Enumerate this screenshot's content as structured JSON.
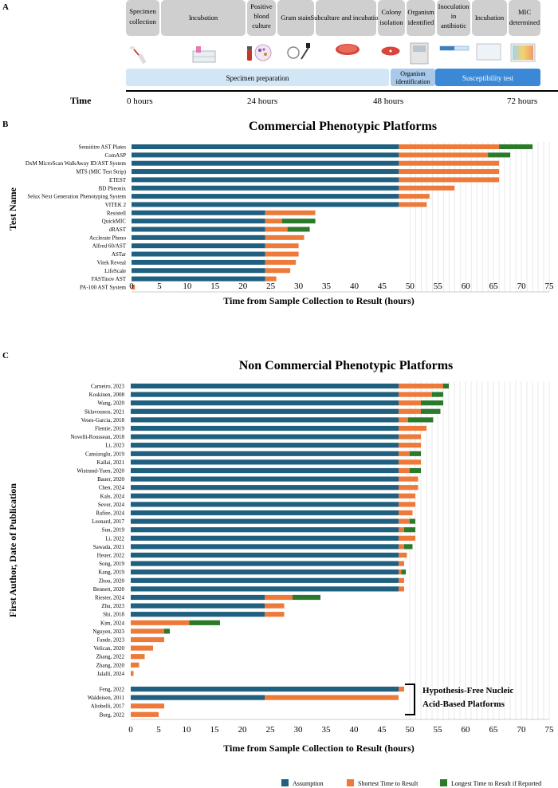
{
  "colors": {
    "assumption": "#1f5f7f",
    "shortest": "#ee7a3a",
    "longest": "#2a7a2a",
    "box": "#cfcfcf",
    "prep": "#d2e6f5",
    "ident": "#a8c9ea",
    "suscept": "#3a88d6"
  },
  "panelA": {
    "label": "A",
    "steps": [
      "Specimen collection",
      "Incubation",
      "Positive blood culture",
      "Gram stain",
      "Subculture and incubation",
      "Colony isolation",
      "Organism identified",
      "Inoculation in antibiotic",
      "Incubation",
      "MIC determined"
    ],
    "phases": [
      "Specimen preparation",
      "Organism identification",
      "Susceptibility test"
    ],
    "time_label": "Time",
    "times": [
      "0 hours",
      "24 hours",
      "48 hours",
      "72 hours"
    ],
    "icons": [
      "swab-icon",
      "incubator-icon",
      "blood-bottle-icon",
      "gram-stain-icon",
      "microscope-icon",
      "petri-dish-icon",
      "colony-plate-icon",
      "analyzer-icon",
      "strip-icon",
      "well-plate-icon",
      "mic-plate-icon"
    ]
  },
  "chart_data": [
    {
      "type": "bar",
      "stacked": true,
      "orientation": "horizontal",
      "panel": "B",
      "title": "Commercial Phenotypic Platforms",
      "xlabel": "Time from Sample Collection to Result (hours)",
      "ylabel": "Test Name",
      "xlim": [
        0,
        75
      ],
      "xticks": [
        0,
        5,
        10,
        15,
        20,
        25,
        30,
        35,
        40,
        45,
        50,
        55,
        60,
        65,
        70,
        75
      ],
      "categories": [
        "Sensititre AST Plates",
        "ComASP",
        "DxM MicroScan WalkAway ID/AST System",
        "MTS (MIC Test Strip)",
        "ETEST",
        "BD Pheonix",
        "Selux Next Generation Phenotyping System",
        "VITEK 2",
        "Resistell",
        "QuickMIC",
        "dRAST",
        "Acclerate Pheno",
        "Alfred 60/AST",
        "ASTar",
        "Vitek Reveal",
        "LifeScale",
        "FASTinov AST",
        "PA-100 AST System"
      ],
      "series": [
        {
          "name": "Assumption",
          "values": [
            48,
            48,
            48,
            48,
            48,
            48,
            48,
            48,
            24,
            24,
            24,
            24,
            24,
            24,
            24,
            24,
            24,
            0
          ]
        },
        {
          "name": "Shortest Time to Result",
          "values": [
            18,
            16,
            18,
            18,
            18,
            10,
            5.5,
            5,
            9,
            3,
            4,
            7,
            6,
            6,
            5.5,
            4.5,
            2,
            0.6
          ]
        },
        {
          "name": "Longest Time to Result if Reported",
          "values": [
            6,
            4,
            0,
            0,
            0,
            0,
            0,
            0,
            0,
            6,
            4,
            0,
            0,
            0,
            0,
            0,
            0,
            0
          ]
        }
      ]
    },
    {
      "type": "bar",
      "stacked": true,
      "orientation": "horizontal",
      "panel": "C",
      "title": "Non Commercial Phenotypic Platforms",
      "xlabel": "Time from Sample Collection to Result (hours)",
      "ylabel": "First Author, Date of Publication",
      "xlim": [
        0,
        75
      ],
      "xticks": [
        0,
        5,
        10,
        15,
        20,
        25,
        30,
        35,
        40,
        45,
        50,
        55,
        60,
        65,
        70,
        75
      ],
      "categories": [
        "Carneiro, 2023",
        "Koskinen, 2008",
        "Wang, 2020",
        "Sklavounos, 2021",
        "Veses-Garcia, 2018",
        "Flentie, 2019",
        "Novelli-Rousseau, 2018",
        "Li, 2023",
        "Cansizoglu, 2019",
        "Kallai, 2021",
        "Wistrand-Yuen, 2020",
        "Bauer, 2020",
        "Chen, 2024",
        "Kals, 2024",
        "Sever, 2024",
        "Rafiee, 2024",
        "Leonard, 2017",
        "Sun, 2019",
        "Li, 2022",
        "Sawada, 2021",
        "Heuer, 2022",
        "Song, 2019",
        "Kang, 2019",
        "Zhou, 2020",
        "Bennett, 2020",
        "Riester, 2024",
        "Zhu, 2023",
        "Shi, 2018",
        "Kim, 2024",
        "Nguyen, 2023",
        "Fande, 2023",
        "Velican, 2020",
        "Zhang, 2022",
        "Zhang, 2020",
        "Jalalli, 2024",
        "Feng, 2022",
        "Waldeisen, 2011",
        "Altobelli, 2017",
        "Burg, 2022"
      ],
      "series": [
        {
          "name": "Assumption",
          "values": [
            48,
            48,
            48,
            48,
            48,
            48,
            48,
            48,
            48,
            48,
            48,
            48,
            48,
            48,
            48,
            48,
            48,
            48,
            48,
            48,
            48,
            48,
            48,
            48,
            48,
            24,
            24,
            24,
            0,
            0,
            0,
            0,
            0,
            0,
            0,
            48,
            24,
            0,
            0
          ]
        },
        {
          "name": "Shortest Time to Result",
          "values": [
            8,
            6,
            4,
            4,
            1.7,
            5,
            4,
            4,
            2,
            4,
            2,
            3.5,
            3.5,
            3,
            3,
            2.5,
            2,
            1,
            3,
            1,
            1.5,
            1,
            0.5,
            1,
            1,
            5,
            3.5,
            3.5,
            10.5,
            6,
            6,
            4,
            2.5,
            1.5,
            0.5,
            1,
            24,
            6,
            5
          ]
        },
        {
          "name": "Longest Time to Result if Reported",
          "values": [
            1,
            2,
            4,
            3.5,
            4.5,
            0,
            0,
            0,
            2,
            0,
            2,
            0,
            0,
            0,
            0,
            0,
            1,
            2,
            0,
            1.5,
            0,
            0,
            0.8,
            0,
            0,
            5,
            0,
            0,
            5.5,
            1,
            0,
            0,
            0,
            0,
            0,
            0,
            0,
            0,
            0
          ]
        }
      ],
      "annotation": "Hypothesis-Free Nucleic Acid-Based Platforms"
    }
  ],
  "legend": [
    "Assumption",
    "Shortest Time to Result",
    "Longest Time to Result if Reported"
  ]
}
